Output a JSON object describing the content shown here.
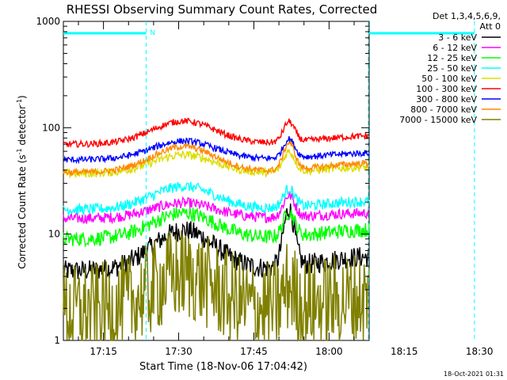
{
  "chart_data": {
    "type": "line",
    "title": "RHESSI Observing Summary Count Rates, Corrected",
    "xlabel": "Start Time (18-Nov-06 17:04:42)",
    "ylabel_main": "Corrected Count Rate (s",
    "ylabel_sup1": "-1",
    "ylabel_mid": " detector",
    "ylabel_sup2": "-1",
    "ylabel_end": ")",
    "yscale": "log",
    "ylim": [
      1,
      1000
    ],
    "yticks": [
      {
        "value": 1,
        "label": "1"
      },
      {
        "value": 10,
        "label": "10"
      },
      {
        "value": 100,
        "label": "100"
      },
      {
        "value": 1000,
        "label": "1000"
      }
    ],
    "xlim_min": [
      7,
      68
    ],
    "xticks": [
      {
        "value": 15,
        "label": "17:15"
      },
      {
        "value": 30,
        "label": "17:30"
      },
      {
        "value": 45,
        "label": "17:45"
      },
      {
        "value": 60,
        "label": "18:00"
      },
      {
        "value": 75,
        "label": "18:15"
      },
      {
        "value": 90,
        "label": "18:30"
      }
    ],
    "legend_header": [
      "Det 1,3,4,5,6,9,",
      "Att 0"
    ],
    "legend_position": "right",
    "series": [
      {
        "name": "3 - 6 keV",
        "color": "#000000",
        "base": 4.5,
        "bump": 2.4,
        "flare": 3.5,
        "noise": 0.1
      },
      {
        "name": "6 - 12 keV",
        "color": "#ff00ff",
        "base": 14,
        "bump": 1.4,
        "flare": 1.6,
        "noise": 0.05
      },
      {
        "name": "12 - 25 keV",
        "color": "#00ff00",
        "base": 9,
        "bump": 1.75,
        "flare": 1.7,
        "noise": 0.07
      },
      {
        "name": "25 - 50 keV",
        "color": "#00ffff",
        "base": 17,
        "bump": 1.65,
        "flare": 1.5,
        "noise": 0.05
      },
      {
        "name": "50 - 100 keV",
        "color": "#dddd00",
        "base": 37,
        "bump": 1.5,
        "flare": 1.55,
        "noise": 0.04
      },
      {
        "name": "100 - 300 keV",
        "color": "#ff0000",
        "base": 70,
        "bump": 1.65,
        "flare": 1.55,
        "noise": 0.03
      },
      {
        "name": "300 - 800 keV",
        "color": "#0000ff",
        "base": 50,
        "bump": 1.5,
        "flare": 1.5,
        "noise": 0.03
      },
      {
        "name": "800 - 7000 keV",
        "color": "#ff8800",
        "base": 38,
        "bump": 1.75,
        "flare": 1.8,
        "noise": 0.03
      },
      {
        "name": "7000 - 15000 keV",
        "color": "#808000",
        "base": 1.9,
        "bump": 2.2,
        "flare": 1.6,
        "noise": 0.45
      }
    ],
    "cyan_markers_min": [
      23.5,
      89
    ],
    "marker_label": "N",
    "timestamp": "18-Oct-2021 01:31"
  }
}
